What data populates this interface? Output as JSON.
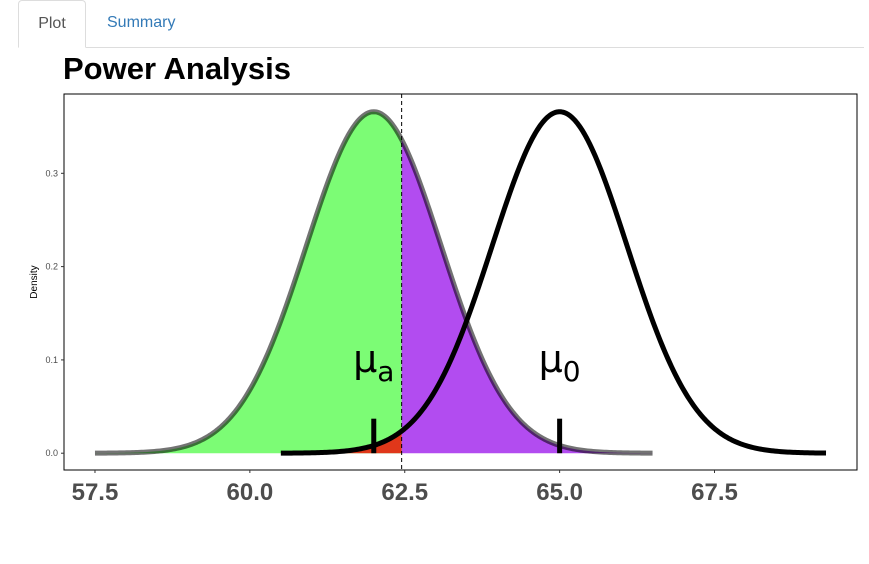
{
  "tabs": [
    {
      "label": "Plot",
      "active": true
    },
    {
      "label": "Summary",
      "active": false
    }
  ],
  "chart_data": {
    "type": "area",
    "title": "Power Analysis",
    "xlabel": "",
    "ylabel": "Density",
    "xlim": [
      57.0,
      69.8
    ],
    "ylim": [
      -0.018,
      0.385
    ],
    "x_ticks": [
      57.5,
      60.0,
      62.5,
      65.0,
      67.5
    ],
    "x_tick_labels": [
      "57.5",
      "60.0",
      "62.5",
      "65.0",
      "67.5"
    ],
    "y_ticks": [
      0.0,
      0.1,
      0.2,
      0.3
    ],
    "y_tick_labels": [
      "0.0",
      "0.1",
      "0.2",
      "0.3"
    ],
    "grid": false,
    "distributions": [
      {
        "mean": 62.0,
        "sd": 1.09,
        "label_base": "μ",
        "label_sub": "a",
        "x_range": [
          57.5,
          66.5
        ]
      },
      {
        "mean": 65.0,
        "sd": 1.09,
        "label_base": "μ",
        "label_sub": "0",
        "x_range": [
          60.5,
          69.3
        ]
      }
    ],
    "critical_value": 62.45,
    "regions": [
      {
        "name": "power",
        "color": "#7cfc75"
      },
      {
        "name": "beta",
        "color": "#b24cf0"
      },
      {
        "name": "alpha",
        "color": "#e0371a"
      }
    ]
  }
}
